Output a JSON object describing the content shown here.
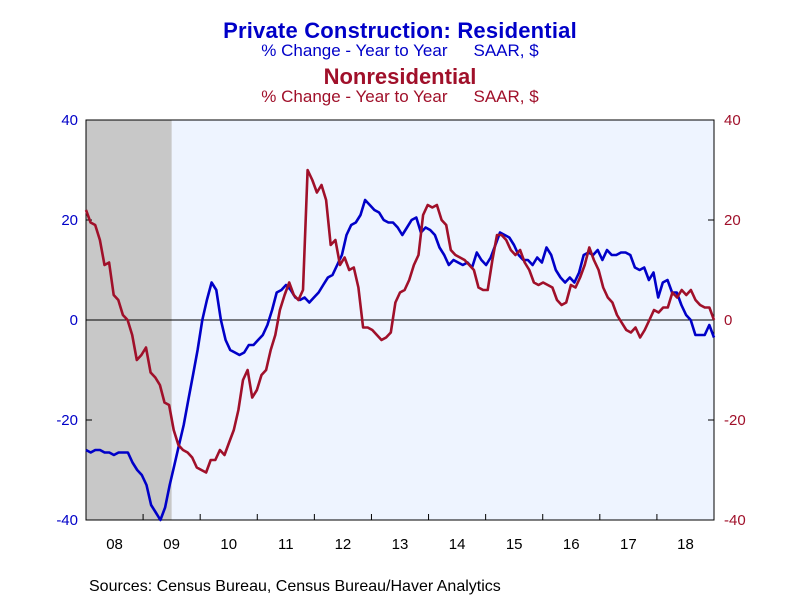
{
  "title": {
    "residential": "Private Construction: Residential",
    "residential_sub_a": "% Change - Year to Year",
    "residential_sub_b": "SAAR, $",
    "nonresidential": "Nonresidential",
    "nonresidential_sub_a": "% Change - Year to Year",
    "nonresidential_sub_b": "SAAR, $"
  },
  "source": "Sources:  Census Bureau, Census Bureau/Haver Analytics",
  "colors": {
    "residential": "#0000c8",
    "nonresidential": "#a0102a",
    "plot_bg": "#eef4ff",
    "recession": "#c8c8c8"
  },
  "chart_data": {
    "type": "line",
    "x_start": 2008.0,
    "x_end": 2019.0,
    "ylim": [
      -40,
      40
    ],
    "y_ticks": [
      -40,
      -20,
      0,
      20,
      40
    ],
    "x_tick_labels": [
      "08",
      "09",
      "10",
      "11",
      "12",
      "13",
      "14",
      "15",
      "16",
      "17",
      "18"
    ],
    "recession_shading": [
      2008.0,
      2009.5
    ],
    "zero_line": true,
    "series": [
      {
        "name": "Residential",
        "axis": "left",
        "color": "#0000c8",
        "values": [
          -26,
          -26.5,
          -26,
          -26,
          -26.5,
          -26.5,
          -27,
          -26.5,
          -26.5,
          -26.5,
          -28.5,
          -30,
          -31,
          -33,
          -37,
          -38.5,
          -40,
          -37.5,
          -33,
          -29,
          -25,
          -21,
          -16,
          -11,
          -6,
          0,
          4,
          7.5,
          6,
          0,
          -4,
          -6,
          -6.5,
          -7,
          -6.5,
          -5,
          -5,
          -4,
          -3,
          -1,
          2,
          5.5,
          6,
          7,
          6,
          4.5,
          4,
          4.5,
          3.5,
          4.5,
          5.5,
          7,
          8.5,
          9,
          11,
          13,
          17,
          19,
          19.5,
          21,
          24,
          23,
          22,
          21.5,
          20,
          19.5,
          19.5,
          18.5,
          17,
          18.5,
          20,
          20.5,
          17.5,
          18.5,
          18,
          17,
          14.5,
          13,
          11,
          12,
          11.5,
          11,
          11.5,
          10.5,
          13.5,
          12,
          11,
          12.5,
          15,
          17.5,
          17,
          16.5,
          15,
          13,
          12,
          12,
          11,
          12.5,
          11.5,
          14.5,
          13,
          10,
          8.5,
          7.5,
          8.5,
          7.5,
          9.5,
          13,
          13.5,
          13,
          14,
          12,
          14,
          13,
          13,
          13.5,
          13.5,
          13,
          10.5,
          10,
          10.5,
          8,
          9.5,
          4.5,
          7.5,
          8,
          5.5,
          5.5,
          3,
          1,
          0,
          -3,
          -3,
          -3,
          -1,
          -3.5
        ]
      },
      {
        "name": "Nonresidential",
        "axis": "right",
        "color": "#a0102a",
        "values": [
          22,
          19.5,
          19,
          16,
          11,
          11.5,
          5,
          4,
          1,
          0,
          -3,
          -8,
          -7,
          -5.5,
          -10.5,
          -11.5,
          -13,
          -16.5,
          -17,
          -22,
          -25,
          -26,
          -26.5,
          -27.5,
          -29.5,
          -30,
          -30.5,
          -28,
          -28,
          -26,
          -27,
          -24.5,
          -22,
          -18,
          -12,
          -10,
          -15.5,
          -14,
          -11,
          -10,
          -6,
          -3,
          2,
          5,
          7.5,
          5,
          4,
          6,
          30,
          28,
          25.5,
          27,
          24,
          15,
          16,
          11,
          12.5,
          10,
          10.5,
          6.5,
          -1.5,
          -1.5,
          -2,
          -3,
          -4,
          -3.5,
          -2.5,
          3.5,
          5.5,
          6,
          8,
          11,
          13,
          21,
          23,
          22.5,
          23,
          20,
          19,
          14,
          13,
          12.5,
          12,
          11,
          10,
          6.5,
          6,
          6,
          12,
          17,
          17,
          16,
          14,
          13,
          14,
          11.5,
          10,
          7.5,
          7,
          7.5,
          7,
          6.5,
          4,
          3,
          3.5,
          7,
          6.5,
          8.5,
          11,
          14.5,
          12,
          10,
          6.5,
          4.5,
          3.5,
          1,
          -0.5,
          -2,
          -2.5,
          -1.5,
          -3.5,
          -2,
          0,
          2,
          1.5,
          2.5,
          2.5,
          5.5,
          4.5,
          6,
          5,
          6,
          4,
          3,
          2.5,
          2.5,
          0
        ]
      }
    ]
  }
}
